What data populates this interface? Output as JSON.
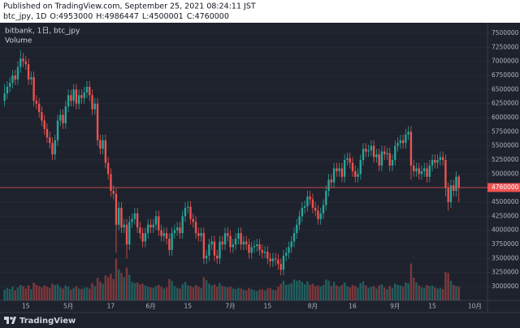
{
  "header": {
    "published": "Published on TradingView.com, September 25, 2021 08:24:11 JST",
    "symbol": "btc_jpy, 1D",
    "ohlc_labels": [
      "O:",
      "H:",
      "L:",
      "C:"
    ]
  },
  "chart_data": {
    "type": "candlestick",
    "title": "bitbank, 1日, btc_jpy",
    "volume_label": "Volume",
    "categories": [
      null,
      null,
      null,
      null,
      null,
      null,
      null,
      null,
      "15",
      null,
      null,
      null,
      null,
      null,
      null,
      null,
      null,
      null,
      null,
      null,
      null,
      null,
      null,
      null,
      "5月",
      null,
      null,
      null,
      null,
      null,
      null,
      null,
      null,
      null,
      null,
      null,
      null,
      null,
      null,
      null,
      "17",
      null,
      null,
      null,
      null,
      null,
      null,
      null,
      null,
      null,
      null,
      null,
      null,
      null,
      null,
      "6月",
      null,
      null,
      null,
      null,
      null,
      null,
      null,
      null,
      null,
      null,
      null,
      null,
      null,
      "15",
      null,
      null,
      null,
      null,
      null,
      null,
      null,
      null,
      null,
      null,
      null,
      null,
      null,
      null,
      null,
      "7月",
      null,
      null,
      null,
      null,
      null,
      null,
      null,
      null,
      null,
      null,
      null,
      null,
      null,
      "15",
      null,
      null,
      null,
      null,
      null,
      null,
      null,
      null,
      null,
      null,
      null,
      null,
      null,
      null,
      null,
      null,
      "8月",
      null,
      null,
      null,
      null,
      null,
      null,
      null,
      null,
      null,
      null,
      null,
      null,
      null,
      null,
      "16",
      null,
      null,
      null,
      null,
      null,
      null,
      null,
      null,
      null,
      null,
      null,
      null,
      null,
      null,
      null,
      "9月",
      null,
      null,
      null,
      null,
      null,
      null,
      null,
      null,
      null,
      null,
      null,
      null,
      null,
      "15",
      null,
      null,
      null,
      null,
      null,
      null,
      null,
      null,
      null,
      null,
      null,
      null,
      null,
      null,
      null,
      "10月"
    ],
    "open": [
      6300000,
      6430000,
      6550000,
      6620000,
      6750000,
      6680000,
      6900000,
      7050000,
      7000000,
      6950000,
      6680000,
      6720000,
      6300000,
      6250000,
      6100000,
      5950000,
      5800000,
      5650000,
      5550000,
      5350000,
      5600000,
      5950000,
      6050000,
      5900000,
      6200000,
      6400000,
      6300000,
      6500000,
      6250000,
      6400000,
      6350000,
      6450000,
      6550000,
      6400000,
      6150000,
      6250000,
      5600000,
      5450000,
      5600000,
      5200000,
      5000000,
      4700000,
      4650000,
      4100000,
      4400000,
      4050000,
      4100000,
      3750000,
      4150000,
      4200000,
      4300000,
      4050000,
      3950000,
      3800000,
      3950000,
      4100000,
      4050000,
      4100000,
      4250000,
      4000000,
      3900000,
      3950000,
      3850000,
      3650000,
      3950000,
      4000000,
      4050000,
      3950000,
      4250000,
      4400000,
      4420000,
      4200000,
      4150000,
      3950000,
      3900000,
      3950000,
      3500000,
      3550000,
      3750000,
      3800000,
      3550000,
      3500000,
      3800000,
      3750000,
      3950000,
      3900000,
      3700000,
      3750000,
      3850000,
      3950000,
      3750000,
      3800000,
      3750000,
      3600000,
      3700000,
      3720000,
      3750000,
      3650000,
      3600000,
      3620000,
      3500000,
      3450000,
      3500000,
      3480000,
      3400000,
      3300000,
      3550000,
      3600000,
      3700000,
      3800000,
      3950000,
      4100000,
      4250000,
      4400000,
      4430000,
      4600000,
      4550000,
      4400000,
      4350000,
      4200000,
      4300000,
      4450000,
      4700000,
      4900000,
      4850000,
      5100000,
      5050000,
      5100000,
      4950000,
      5250000,
      5280000,
      5200000,
      5050000,
      4950000,
      5000000,
      5250000,
      5450000,
      5400000,
      5420000,
      5500000,
      5300000,
      5350000,
      5150000,
      5400000,
      5350000,
      5370000,
      5150000,
      5250000,
      5500000,
      5550000,
      5600000,
      5550000,
      5700000,
      5750000,
      5150000,
      5050000,
      5100000,
      5000000,
      5050000,
      5100000,
      4950000,
      5150000,
      5250000,
      5200000,
      5250000,
      5300000,
      5250000,
      4750000,
      4500000,
      4800000,
      4700000,
      4953000,
      null,
      null,
      null,
      null,
      null,
      null
    ],
    "high": [
      6600000,
      6650000,
      6720000,
      6850000,
      6850000,
      7000000,
      7200000,
      7150000,
      7100000,
      7050000,
      6820000,
      6820000,
      6400000,
      6350000,
      6200000,
      6050000,
      5900000,
      5750000,
      5650000,
      5700000,
      6050000,
      6150000,
      6150000,
      6300000,
      6500000,
      6500000,
      6600000,
      6600000,
      6500000,
      6500000,
      6550000,
      6650000,
      6650000,
      6500000,
      6350000,
      6350000,
      5700000,
      5700000,
      5700000,
      5300000,
      5100000,
      4800000,
      4750000,
      4500000,
      4500000,
      4200000,
      4200000,
      4250000,
      4300000,
      4400000,
      4400000,
      4150000,
      4050000,
      4050000,
      4200000,
      4200000,
      4200000,
      4350000,
      4350000,
      4100000,
      4050000,
      4050000,
      3950000,
      4050000,
      4100000,
      4150000,
      4150000,
      4350000,
      4500000,
      4520000,
      4520000,
      4300000,
      4250000,
      4050000,
      4050000,
      4050000,
      3650000,
      3850000,
      3900000,
      3900000,
      3650000,
      3900000,
      3900000,
      4050000,
      4050000,
      4000000,
      3850000,
      3950000,
      4050000,
      4050000,
      3900000,
      3900000,
      3850000,
      3800000,
      3820000,
      3850000,
      3850000,
      3750000,
      3720000,
      3720000,
      3600000,
      3600000,
      3600000,
      3580000,
      3500000,
      3650000,
      3700000,
      3800000,
      3900000,
      4050000,
      4200000,
      4350000,
      4500000,
      4530000,
      4700000,
      4700000,
      4650000,
      4500000,
      4450000,
      4400000,
      4550000,
      4800000,
      5000000,
      5000000,
      5200000,
      5200000,
      5200000,
      5200000,
      5350000,
      5380000,
      5380000,
      5300000,
      5150000,
      5100000,
      5350000,
      5550000,
      5550000,
      5520000,
      5600000,
      5600000,
      5450000,
      5450000,
      5500000,
      5500000,
      5470000,
      5470000,
      5350000,
      5600000,
      5650000,
      5700000,
      5700000,
      5800000,
      5850000,
      5850000,
      5250000,
      5200000,
      5200000,
      5150000,
      5200000,
      5200000,
      5250000,
      5350000,
      5350000,
      5350000,
      5400000,
      5400000,
      5350000,
      4850000,
      4900000,
      4900000,
      5050000,
      4986447,
      null,
      null,
      null,
      null,
      null,
      null
    ],
    "low": [
      6200000,
      6330000,
      6450000,
      6520000,
      6580000,
      6580000,
      6800000,
      6900000,
      6850000,
      6580000,
      6580000,
      6200000,
      6150000,
      6000000,
      5850000,
      5700000,
      5550000,
      5450000,
      5250000,
      5250000,
      5500000,
      5850000,
      5800000,
      5800000,
      6100000,
      6200000,
      6200000,
      6150000,
      6150000,
      6250000,
      6250000,
      6350000,
      6300000,
      6050000,
      6050000,
      5500000,
      5350000,
      5350000,
      5100000,
      4900000,
      4600000,
      4550000,
      3600000,
      4000000,
      3950000,
      3950000,
      3500000,
      3650000,
      4050000,
      4100000,
      3950000,
      3850000,
      3700000,
      3700000,
      3850000,
      3950000,
      3950000,
      4000000,
      3900000,
      3800000,
      3800000,
      3750000,
      3550000,
      3550000,
      3850000,
      3900000,
      3850000,
      3850000,
      4150000,
      4300000,
      4100000,
      4050000,
      3850000,
      3800000,
      3800000,
      3400000,
      3400000,
      3450000,
      3650000,
      3450000,
      3400000,
      3400000,
      3650000,
      3650000,
      3800000,
      3600000,
      3600000,
      3650000,
      3750000,
      3650000,
      3650000,
      3650000,
      3500000,
      3500000,
      3600000,
      3620000,
      3550000,
      3500000,
      3500000,
      3400000,
      3350000,
      3350000,
      3380000,
      3300000,
      3200000,
      3200000,
      3450000,
      3500000,
      3600000,
      3700000,
      3850000,
      4000000,
      4150000,
      4300000,
      4330000,
      4450000,
      4300000,
      4250000,
      4100000,
      4100000,
      4200000,
      4350000,
      4600000,
      4750000,
      4750000,
      4950000,
      4950000,
      4850000,
      4850000,
      5150000,
      5100000,
      4950000,
      4850000,
      4850000,
      4900000,
      5150000,
      5300000,
      5300000,
      5320000,
      5200000,
      5200000,
      5050000,
      5050000,
      5250000,
      5250000,
      5050000,
      5050000,
      5150000,
      5400000,
      5450000,
      5450000,
      5450000,
      5600000,
      4900000,
      4950000,
      4950000,
      4900000,
      4900000,
      4950000,
      4850000,
      4850000,
      5050000,
      5100000,
      5100000,
      5150000,
      5150000,
      4600000,
      4350000,
      4400000,
      4600000,
      4600000,
      4500001,
      null,
      null,
      null,
      null,
      null,
      null
    ],
    "close": [
      6430000,
      6550000,
      6620000,
      6750000,
      6680000,
      6900000,
      7050000,
      7000000,
      6950000,
      6680000,
      6720000,
      6300000,
      6250000,
      6100000,
      5950000,
      5800000,
      5650000,
      5550000,
      5350000,
      5600000,
      5950000,
      6050000,
      5900000,
      6200000,
      6400000,
      6300000,
      6500000,
      6250000,
      6400000,
      6350000,
      6450000,
      6550000,
      6400000,
      6150000,
      6250000,
      5600000,
      5450000,
      5600000,
      5200000,
      5000000,
      4700000,
      4650000,
      4100000,
      4400000,
      4050000,
      4100000,
      3750000,
      4150000,
      4200000,
      4300000,
      4050000,
      3950000,
      3800000,
      3950000,
      4100000,
      4050000,
      4100000,
      4250000,
      4000000,
      3900000,
      3950000,
      3850000,
      3650000,
      3950000,
      4000000,
      4050000,
      3950000,
      4250000,
      4400000,
      4420000,
      4200000,
      4150000,
      3950000,
      3900000,
      3950000,
      3500000,
      3550000,
      3750000,
      3800000,
      3550000,
      3500000,
      3800000,
      3750000,
      3950000,
      3900000,
      3700000,
      3750000,
      3850000,
      3950000,
      3750000,
      3800000,
      3750000,
      3600000,
      3700000,
      3720000,
      3750000,
      3650000,
      3600000,
      3620000,
      3500000,
      3450000,
      3500000,
      3480000,
      3400000,
      3300000,
      3550000,
      3600000,
      3700000,
      3800000,
      3950000,
      4100000,
      4250000,
      4400000,
      4430000,
      4600000,
      4550000,
      4400000,
      4350000,
      4200000,
      4300000,
      4450000,
      4700000,
      4900000,
      4850000,
      5100000,
      5050000,
      5100000,
      4950000,
      5250000,
      5280000,
      5200000,
      5050000,
      4950000,
      5000000,
      5250000,
      5450000,
      5400000,
      5420000,
      5500000,
      5300000,
      5350000,
      5150000,
      5400000,
      5350000,
      5370000,
      5150000,
      5250000,
      5500000,
      5550000,
      5600000,
      5550000,
      5700000,
      5750000,
      5150000,
      5050000,
      5100000,
      5000000,
      5050000,
      5100000,
      4950000,
      5150000,
      5250000,
      5200000,
      5250000,
      5300000,
      5250000,
      4750000,
      4500000,
      4800000,
      4700000,
      4953000,
      4760000,
      null,
      null,
      null,
      null,
      null,
      null
    ],
    "volume": [
      1800,
      2100,
      1900,
      2300,
      1700,
      2200,
      2600,
      2400,
      2000,
      2500,
      1900,
      3000,
      2600,
      2400,
      2200,
      2500,
      2300,
      2100,
      2800,
      2600,
      2700,
      2200,
      2000,
      2500,
      2300,
      1800,
      2100,
      2400,
      2000,
      1900,
      2100,
      2200,
      2000,
      2900,
      2400,
      3800,
      3200,
      2800,
      4200,
      3900,
      4500,
      3600,
      7000,
      5200,
      4600,
      3900,
      5500,
      4300,
      3100,
      2900,
      3000,
      2700,
      2800,
      2500,
      2300,
      2200,
      2100,
      2400,
      2600,
      2300,
      2000,
      2200,
      3600,
      3300,
      2400,
      2100,
      2000,
      2700,
      3100,
      2500,
      2400,
      2200,
      2600,
      2300,
      2100,
      3900,
      3400,
      2800,
      2500,
      2700,
      2300,
      2900,
      2400,
      2300,
      2200,
      2300,
      2000,
      1900,
      2100,
      2000,
      1800,
      1700,
      2100,
      1900,
      1700,
      1600,
      1800,
      1900,
      1700,
      2000,
      2100,
      1800,
      1700,
      2300,
      2800,
      3300,
      2600,
      2700,
      2900,
      3500,
      3300,
      3400,
      3100,
      2700,
      3200,
      2600,
      2800,
      2400,
      2500,
      2300,
      2600,
      3500,
      3300,
      2400,
      3100,
      2500,
      2300,
      2600,
      3000,
      2400,
      2200,
      2600,
      2400,
      2100,
      2900,
      3200,
      2500,
      2100,
      2300,
      2400,
      2000,
      2500,
      2700,
      2200,
      1900,
      2400,
      2100,
      2800,
      2600,
      2500,
      2300,
      3000,
      2900,
      6200,
      3800,
      3000,
      2500,
      2200,
      2100,
      2600,
      2400,
      2500,
      2200,
      2000,
      2100,
      1900,
      4800,
      4600,
      3300,
      2600,
      2400,
      2300,
      null,
      null,
      null,
      null,
      null,
      null
    ],
    "up_color": "#26a69a",
    "down_color": "#ef5350",
    "ylim": [
      2755000,
      7687500
    ],
    "yticks": [
      3000000,
      3250000,
      3500000,
      3750000,
      4000000,
      4250000,
      4500000,
      4750000,
      5000000,
      5250000,
      5500000,
      5750000,
      6000000,
      6250000,
      6500000,
      6750000,
      7000000,
      7250000,
      7500000
    ],
    "volume_lim": [
      0,
      15000
    ],
    "grid": true,
    "last_price_line": true
  },
  "footer": {
    "brand": "TradingView"
  }
}
